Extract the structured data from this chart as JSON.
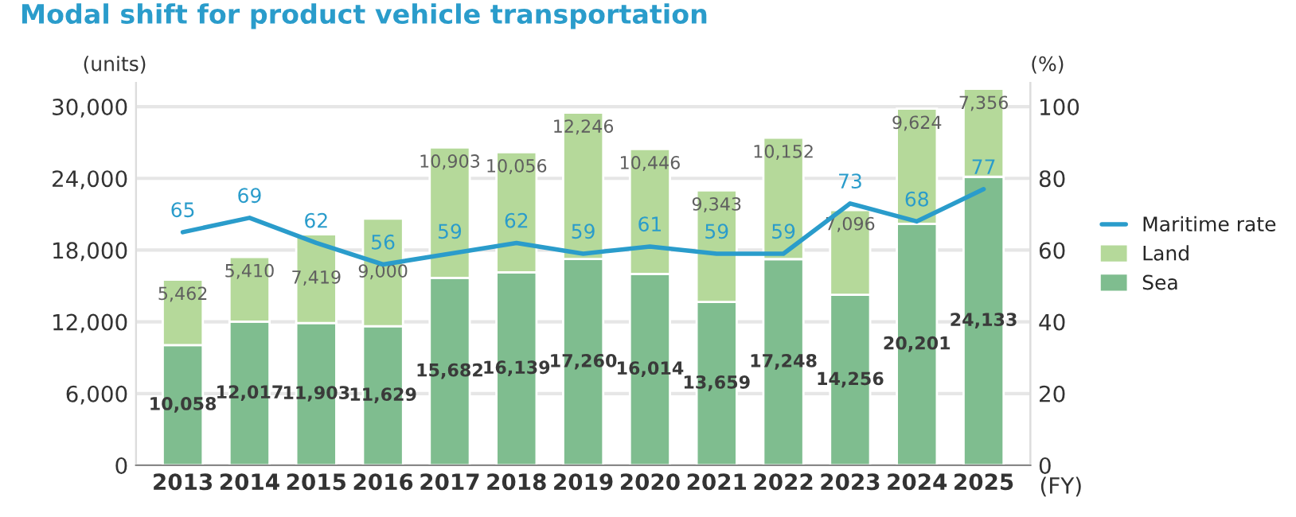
{
  "chart_data": {
    "type": "bar",
    "title": "Modal shift for product vehicle transportation",
    "ylabel": "(units)",
    "y2label": "(%)",
    "xlabel": "(FY)",
    "categories": [
      "2013",
      "2014",
      "2015",
      "2016",
      "2017",
      "2018",
      "2019",
      "2020",
      "2021",
      "2022",
      "2023",
      "2024",
      "2025"
    ],
    "stacked": true,
    "grid": "y",
    "legend": "right",
    "ylim": [
      0,
      32000
    ],
    "yticks": [
      {
        "value": 0,
        "label": "0"
      },
      {
        "value": 6000,
        "label": "6,000"
      },
      {
        "value": 12000,
        "label": "12,000"
      },
      {
        "value": 18000,
        "label": "18,000"
      },
      {
        "value": 24000,
        "label": "24,000"
      },
      {
        "value": 30000,
        "label": "30,000"
      }
    ],
    "y2lim": [
      0,
      106.67
    ],
    "y2ticks": [
      0,
      20,
      40,
      60,
      80,
      100
    ],
    "series": [
      {
        "name": "Sea",
        "color": "#7fbd8f",
        "values": [
          10058,
          12017,
          11903,
          11629,
          15682,
          16139,
          17260,
          16014,
          13659,
          17248,
          14256,
          20201,
          24133
        ],
        "value_labels": [
          "10,058",
          "12,017",
          "11,903",
          "11,629",
          "15,682",
          "16,139",
          "17,260",
          "16,014",
          "13,659",
          "17,248",
          "14,256",
          "20,201",
          "24,133"
        ]
      },
      {
        "name": "Land",
        "color": "#b5d99a",
        "values": [
          5462,
          5410,
          7419,
          9000,
          10903,
          10056,
          12246,
          10446,
          9343,
          10152,
          7096,
          9624,
          7356
        ],
        "value_labels": [
          "5,462",
          "5,410",
          "7,419",
          "9,000",
          "10,903",
          "10,056",
          "12,246",
          "10,446",
          "9,343",
          "10,152",
          "7,096",
          "9,624",
          "7,356"
        ]
      },
      {
        "name": "Maritime rate",
        "type": "line",
        "axis": "y2",
        "color": "#2a9ccb",
        "values": [
          65,
          69,
          62,
          56,
          59,
          62,
          59,
          61,
          59,
          59,
          73,
          68,
          77
        ],
        "value_labels": [
          "65",
          "69",
          "62",
          "56",
          "59",
          "62",
          "59",
          "61",
          "59",
          "59",
          "73",
          "68",
          "77"
        ]
      }
    ]
  }
}
